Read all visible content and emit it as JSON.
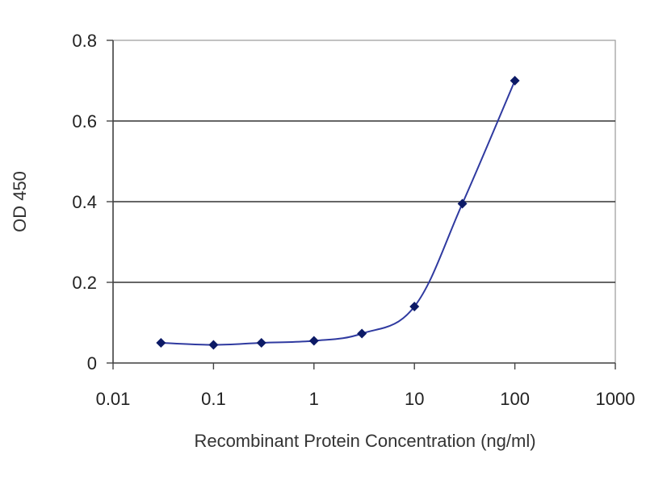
{
  "chart_data": {
    "type": "line",
    "title": "",
    "xlabel": "Recombinant Protein Concentration (ng/ml)",
    "ylabel": "OD 450",
    "x_scale": "log",
    "xlim": [
      0.01,
      1000
    ],
    "ylim": [
      0,
      0.8
    ],
    "x_ticks": [
      "0.01",
      "0.1",
      "1",
      "10",
      "100",
      "1000"
    ],
    "y_ticks": [
      "0",
      "0.2",
      "0.4",
      "0.6",
      "0.8"
    ],
    "grid": "horizontal",
    "legend": "none",
    "series": [
      {
        "color": "#2f3aa0",
        "marker_color": "#0c1a66",
        "x": [
          0.03,
          0.1,
          0.3,
          1,
          3,
          10,
          30,
          100
        ],
        "y": [
          0.05,
          0.045,
          0.05,
          0.055,
          0.073,
          0.14,
          0.395,
          0.7
        ]
      }
    ],
    "colors": {
      "gridline": "#333333",
      "axis": "#444444",
      "plot_border": "#9a9a9a"
    }
  }
}
